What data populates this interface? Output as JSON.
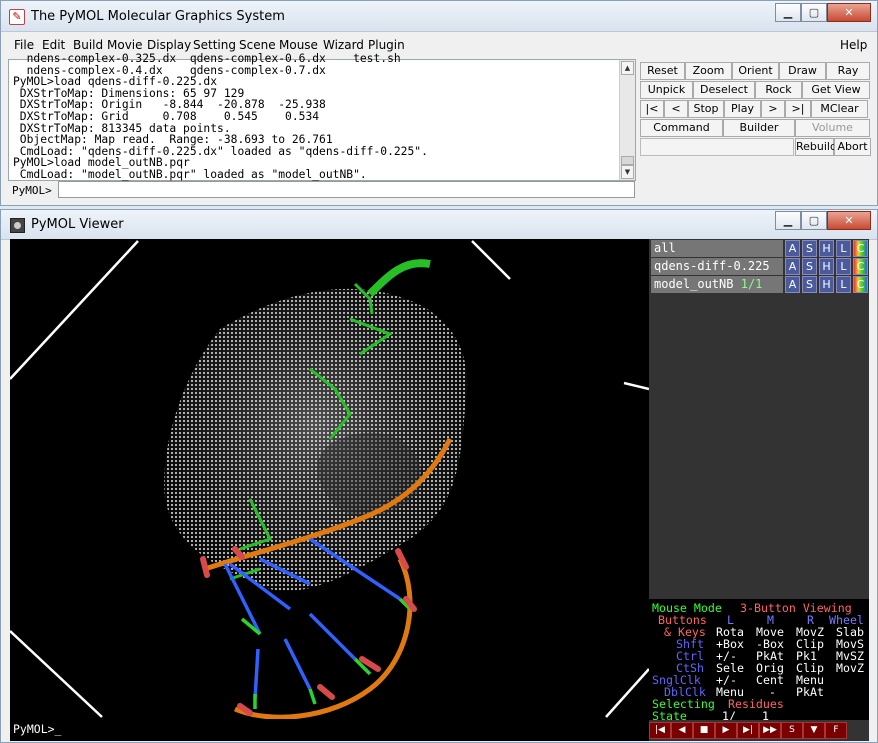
{
  "main_window": {
    "title": "The PyMOL Molecular Graphics System",
    "menus": [
      "File",
      "Edit",
      "Build",
      "Movie",
      "Display",
      "Setting",
      "Scene",
      "Mouse",
      "Wizard",
      "Plugin"
    ],
    "help": "Help",
    "console_lines": [
      "  ndens-complex-0.325.dx  qdens-complex-0.6.dx    test.sh",
      "  ndens-complex-0.4.dx    qdens-complex-0.7.dx",
      "PyMOL>load qdens-diff-0.225.dx",
      " DXStrToMap: Dimensions: 65 97 129",
      " DXStrToMap: Origin   -8.844  -20.878  -25.938",
      " DXStrToMap: Grid     0.708    0.545    0.534",
      " DXStrToMap: 813345 data points.",
      " ObjectMap: Map read.  Range: -38.693 to 26.761",
      " CmdLoad: \"qdens-diff-0.225.dx\" loaded as \"qdens-diff-0.225\".",
      "PyMOL>load model_outNB.pqr",
      " CmdLoad: \"model_outNB.pqr\" loaded as \"model_outNB\"."
    ],
    "cmd_label": "PyMOL>",
    "cmd_value": "",
    "button_rows": [
      [
        "Reset",
        "Zoom",
        "Orient",
        "Draw",
        "Ray"
      ],
      [
        "Unpick",
        "Deselect",
        "Rock",
        "Get View"
      ],
      [
        "|<",
        "<",
        "Stop",
        "Play",
        ">",
        ">|",
        "MClear"
      ],
      [
        "Command",
        "Builder",
        "Volume"
      ],
      [
        "Rebuild",
        "Abort"
      ]
    ]
  },
  "viewer_window": {
    "title": "PyMOL Viewer",
    "prompt": "PyMOL>_",
    "objects": [
      {
        "name": "all",
        "frame": ""
      },
      {
        "name": "qdens-diff-0.225",
        "frame": ""
      },
      {
        "name": "model_outNB",
        "frame": "1/1"
      }
    ],
    "object_controls": [
      "A",
      "S",
      "H",
      "L",
      "C"
    ],
    "mouse_panel": {
      "mode_label": "Mouse Mode",
      "mode_value": "3-Button Viewing",
      "buttons_label": "Buttons",
      "col_l": "L",
      "col_m": "M",
      "col_r": "R",
      "col_wheel": "Wheel",
      "keys_label": "& Keys",
      "rows": [
        {
          "key": "",
          "l": "Rota",
          "m": "Move",
          "r": "MovZ",
          "w": "Slab"
        },
        {
          "key": "Shft",
          "l": "+Box",
          "m": "-Box",
          "r": "Clip",
          "w": "MovS"
        },
        {
          "key": "Ctrl",
          "l": "+/-",
          "m": "PkAt",
          "r": "Pk1",
          "w": "MvSZ"
        },
        {
          "key": "CtSh",
          "l": "Sele",
          "m": "Orig",
          "r": "Clip",
          "w": "MovZ"
        },
        {
          "key": "SnglClk",
          "l": "+/-",
          "m": "Cent",
          "r": "Menu",
          "w": ""
        },
        {
          "key": "DblClk",
          "l": "Menu",
          "m": "-",
          "r": "PkAt",
          "w": ""
        }
      ],
      "selecting_label": "Selecting",
      "selecting_value": "Residues",
      "state_label": "State",
      "state_value": "1/",
      "state_total": "1"
    },
    "vcr_buttons": [
      "|◀",
      "◀",
      "■",
      "▶",
      "▶|",
      "▶▶",
      "S",
      "▼",
      "F"
    ]
  },
  "colors": {
    "mode_green": "#32ff32",
    "label_pink": "#ff6464",
    "key_blue": "#6464ff",
    "col_blue": "#7878ff"
  }
}
